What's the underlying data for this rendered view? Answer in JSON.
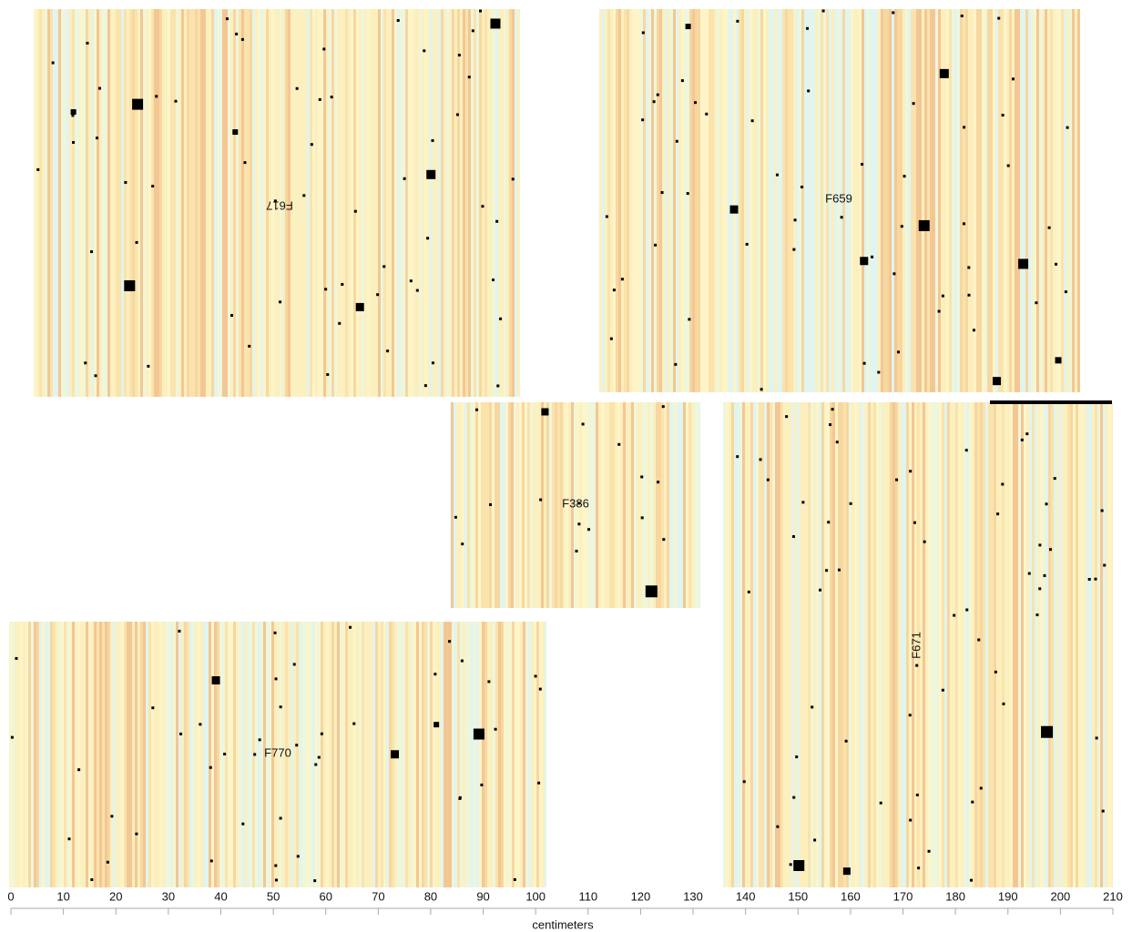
{
  "chart_data": {
    "type": "image-panels",
    "panels": [
      {
        "label": "F617"
      },
      {
        "label": "F659"
      },
      {
        "label": "F386"
      },
      {
        "label": "F770"
      },
      {
        "label": "F671"
      }
    ],
    "xlabel": "centimeters",
    "xlim": [
      0,
      210
    ],
    "xticks": [
      0,
      10,
      20,
      30,
      40,
      50,
      60,
      70,
      80,
      90,
      100,
      110,
      120,
      130,
      140,
      150,
      160,
      170,
      180,
      190,
      200,
      210
    ]
  }
}
